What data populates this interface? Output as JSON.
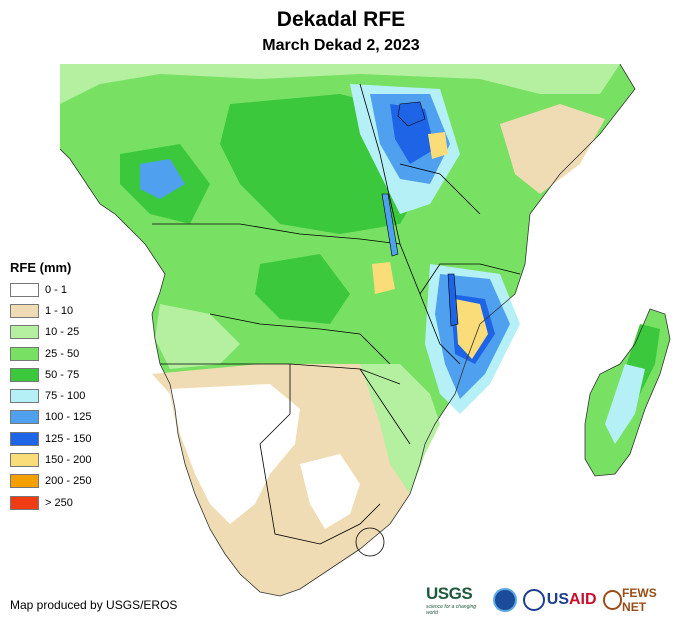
{
  "title": "Dekadal RFE",
  "subtitle": "March Dekad 2, 2023",
  "legend": {
    "title": "RFE (mm)",
    "items": [
      {
        "label": "0 - 1",
        "color": "#ffffff"
      },
      {
        "label": "1 - 10",
        "color": "#f0dcb4"
      },
      {
        "label": "10 - 25",
        "color": "#b4f0a0"
      },
      {
        "label": "25 - 50",
        "color": "#78e164"
      },
      {
        "label": "50 - 75",
        "color": "#3cc83c"
      },
      {
        "label": "75 - 100",
        "color": "#b4f0f5"
      },
      {
        "label": "100 - 125",
        "color": "#50a0f0"
      },
      {
        "label": "125 - 150",
        "color": "#1e64e6"
      },
      {
        "label": "150 - 200",
        "color": "#fadc78"
      },
      {
        "label": "200 - 250",
        "color": "#f5a000"
      },
      {
        "label": "> 250",
        "color": "#f03c14"
      }
    ]
  },
  "credit": "Map produced by USGS/EROS",
  "logos": {
    "usgs": "USGS",
    "usgs_tagline": "science for a changing world",
    "usaid_prefix": "US",
    "usaid_suffix": "AID",
    "fews": "FEWS NET"
  }
}
